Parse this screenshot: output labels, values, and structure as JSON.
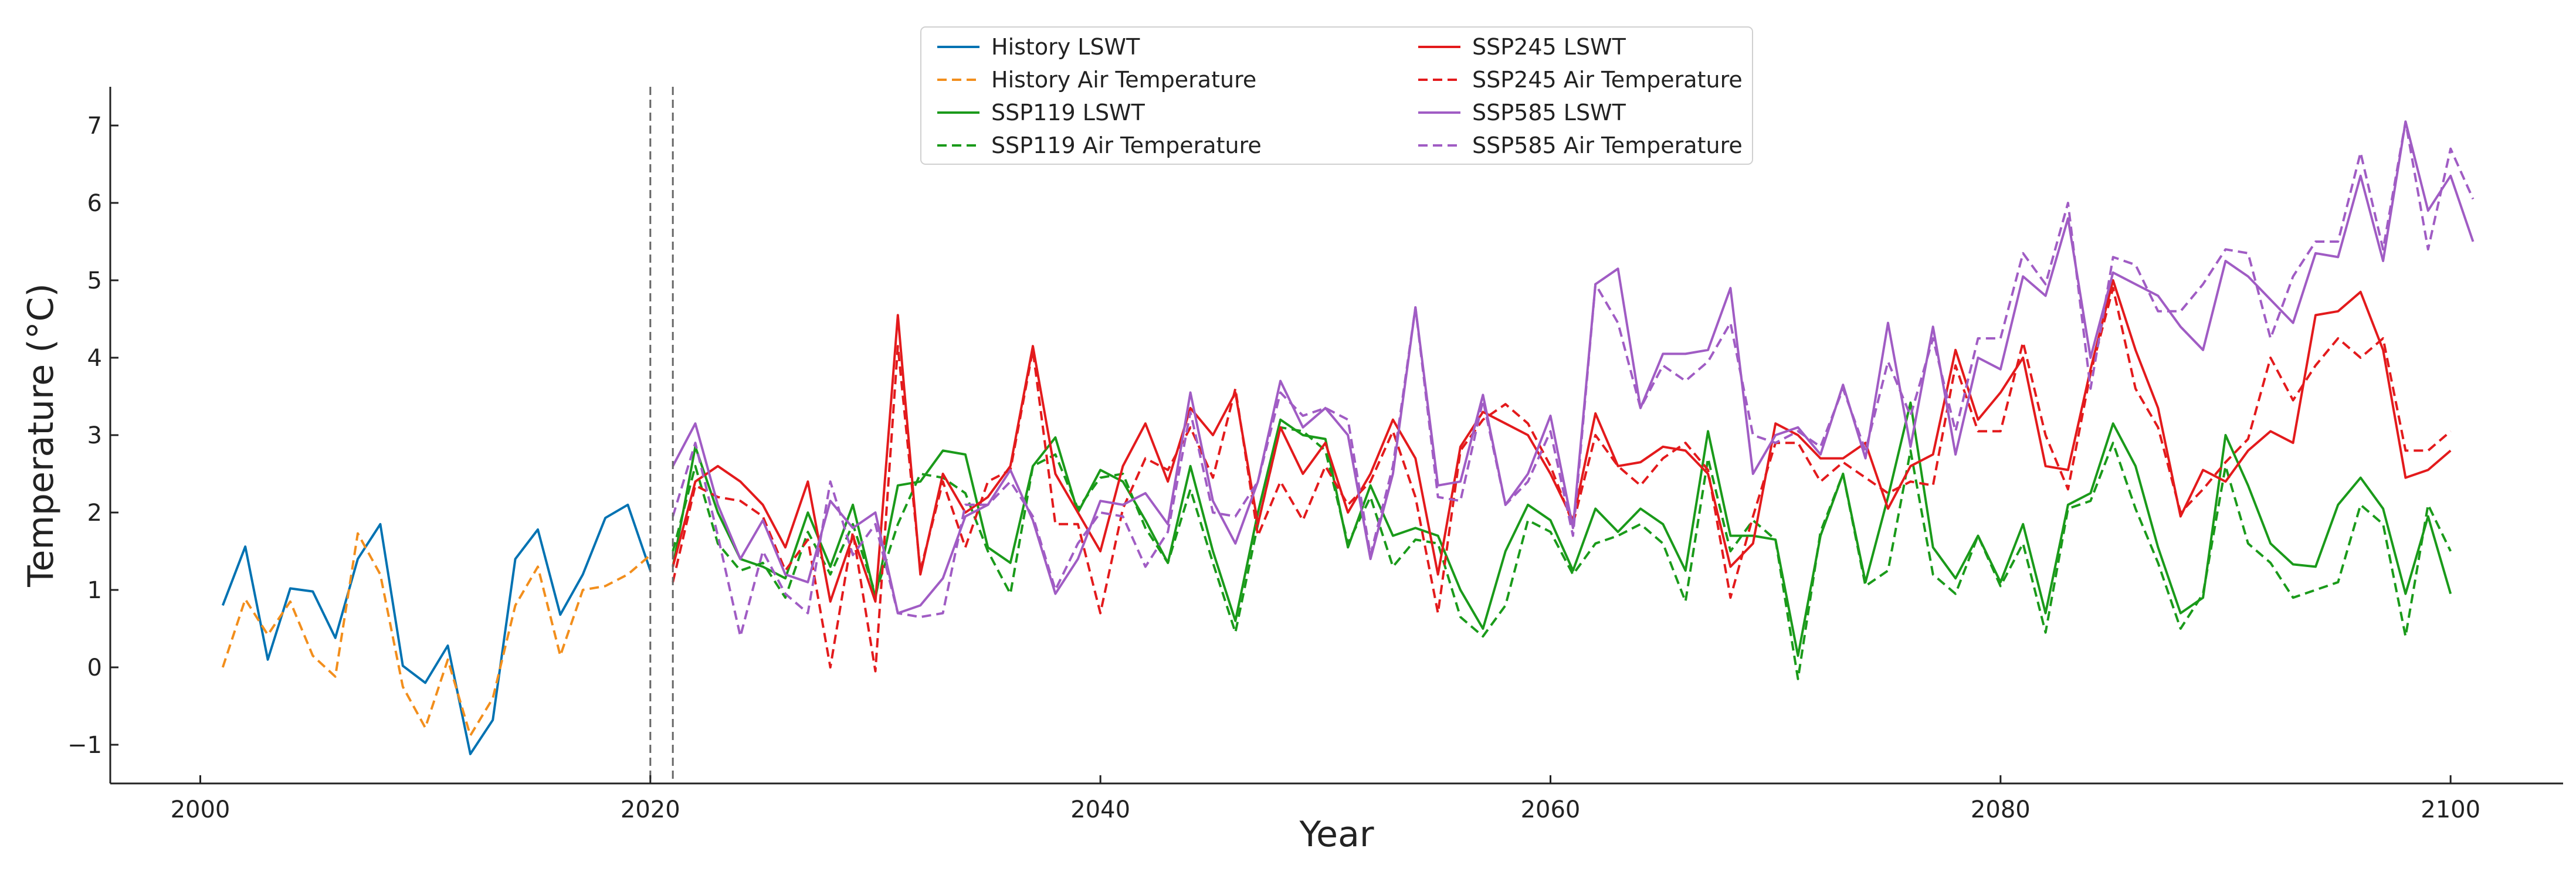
{
  "chart_data": {
    "type": "line",
    "title": "",
    "xlabel": "Year",
    "ylabel": "Temperature (°C)",
    "xlim": [
      1996,
      2105
    ],
    "ylim": [
      -1.5,
      7.5
    ],
    "xticks": [
      2000,
      2020,
      2040,
      2060,
      2080,
      2100
    ],
    "yticks": [
      -1,
      0,
      1,
      2,
      3,
      4,
      5,
      6,
      7
    ],
    "ytick_labels": [
      "−1",
      "0",
      "1",
      "2",
      "3",
      "4",
      "5",
      "6",
      "7"
    ],
    "vlines": [
      2020,
      2021
    ],
    "grid": false,
    "legend_position": "upper center",
    "colors": {
      "history": "#0072b2",
      "history_air": "#f28e1c",
      "ssp119": "#1a9a1a",
      "ssp245": "#e31a1c",
      "ssp585": "#a05cc4",
      "vline": "#666666",
      "axis": "#222222"
    },
    "series": [
      {
        "name": "History LSWT",
        "key": "history",
        "dash": false,
        "x0": 2001,
        "values": [
          0.8,
          1.56,
          0.1,
          1.02,
          0.98,
          0.38,
          1.4,
          1.85,
          0.02,
          -0.2,
          0.28,
          -1.12,
          -0.68,
          1.4,
          1.78,
          0.68,
          1.2,
          1.93,
          2.1,
          1.25
        ]
      },
      {
        "name": "History Air Temperature",
        "key": "history_air",
        "dash": true,
        "x0": 2001,
        "values": [
          0.0,
          0.88,
          0.42,
          0.85,
          0.15,
          -0.12,
          1.73,
          1.2,
          -0.25,
          -0.78,
          0.1,
          -0.88,
          -0.4,
          0.8,
          1.3,
          0.15,
          1.0,
          1.05,
          1.2,
          1.45
        ]
      },
      {
        "name": "SSP119 LSWT",
        "key": "ssp119",
        "dash": false,
        "x0": 2021,
        "values": [
          1.3,
          2.85,
          2.0,
          1.4,
          1.3,
          1.15,
          2.0,
          1.3,
          2.1,
          0.9,
          2.35,
          2.4,
          2.8,
          2.75,
          1.55,
          1.35,
          2.6,
          2.97,
          2.0,
          2.55,
          2.4,
          1.9,
          1.35,
          2.6,
          1.5,
          0.6,
          2.0,
          3.2,
          3.0,
          2.95,
          1.55,
          2.35,
          1.7,
          1.8,
          1.7,
          1.0,
          0.5,
          1.5,
          2.1,
          1.9,
          1.25,
          2.05,
          1.75,
          2.05,
          1.85,
          1.25,
          3.05,
          1.7,
          1.7,
          1.65,
          0.15,
          1.7,
          2.5,
          1.1,
          2.2,
          3.42,
          1.55,
          1.15,
          1.7,
          1.1,
          1.85,
          0.7,
          2.1,
          2.25,
          3.15,
          2.6,
          1.55,
          0.7,
          0.9,
          3.0,
          2.35,
          1.6,
          1.33,
          1.3,
          2.1,
          2.45,
          2.05,
          0.95,
          1.95,
          0.95
        ]
      },
      {
        "name": "SSP119 Air Temperature",
        "key": "ssp119_air",
        "dash": true,
        "x0": 2021,
        "values": [
          1.5,
          2.6,
          1.6,
          1.25,
          1.35,
          0.9,
          1.75,
          1.2,
          1.85,
          0.95,
          1.85,
          2.5,
          2.45,
          2.25,
          1.5,
          0.95,
          2.6,
          2.75,
          2.05,
          2.45,
          2.5,
          1.8,
          1.35,
          2.3,
          1.35,
          0.45,
          1.85,
          3.1,
          3.05,
          2.8,
          1.6,
          2.2,
          1.3,
          1.65,
          1.6,
          0.65,
          0.4,
          0.8,
          1.9,
          1.75,
          1.2,
          1.6,
          1.7,
          1.85,
          1.6,
          0.85,
          2.7,
          1.5,
          1.9,
          1.65,
          -0.15,
          1.75,
          2.5,
          1.05,
          1.25,
          2.8,
          1.2,
          0.95,
          1.7,
          1.05,
          1.6,
          0.45,
          2.05,
          2.15,
          2.9,
          2.05,
          1.35,
          0.5,
          0.95,
          2.6,
          1.6,
          1.35,
          0.9,
          1.0,
          1.1,
          2.1,
          1.85,
          0.4,
          2.1,
          1.5
        ]
      },
      {
        "name": "SSP245 LSWT",
        "key": "ssp245",
        "dash": false,
        "x0": 2021,
        "values": [
          1.3,
          2.4,
          2.6,
          2.4,
          2.1,
          1.55,
          2.4,
          0.85,
          1.7,
          0.85,
          4.55,
          1.2,
          2.5,
          2.0,
          2.2,
          2.6,
          4.15,
          2.5,
          2.0,
          1.5,
          2.6,
          3.15,
          2.4,
          3.35,
          3.0,
          3.55,
          1.85,
          3.1,
          2.5,
          2.9,
          2.0,
          2.5,
          3.2,
          2.7,
          1.2,
          2.85,
          3.3,
          3.15,
          3.0,
          2.5,
          1.9,
          3.28,
          2.6,
          2.65,
          2.85,
          2.8,
          2.5,
          1.3,
          1.6,
          3.15,
          3.0,
          2.7,
          2.7,
          2.9,
          2.05,
          2.6,
          2.75,
          4.1,
          3.2,
          3.55,
          4.0,
          2.6,
          2.55,
          3.85,
          5.0,
          4.1,
          3.35,
          1.95,
          2.55,
          2.4,
          2.8,
          3.05,
          2.9,
          4.55,
          4.6,
          4.85,
          4.1,
          2.45,
          2.55,
          2.8
        ]
      },
      {
        "name": "SSP245 Air Temperature",
        "key": "ssp245_air",
        "dash": true,
        "x0": 2021,
        "values": [
          1.1,
          2.35,
          2.2,
          2.15,
          1.95,
          1.25,
          1.65,
          0.0,
          1.75,
          -0.05,
          4.15,
          1.25,
          2.4,
          1.55,
          2.4,
          2.55,
          4.1,
          1.85,
          1.85,
          0.7,
          2.05,
          2.7,
          2.55,
          3.1,
          2.45,
          3.6,
          1.7,
          2.4,
          1.9,
          2.6,
          2.1,
          2.4,
          3.05,
          2.2,
          0.7,
          2.8,
          3.2,
          3.4,
          3.15,
          2.6,
          1.85,
          3.0,
          2.6,
          2.35,
          2.7,
          2.9,
          2.55,
          0.9,
          1.95,
          2.9,
          2.9,
          2.4,
          2.65,
          2.45,
          2.25,
          2.4,
          2.35,
          3.9,
          3.05,
          3.05,
          4.2,
          3.0,
          2.3,
          3.8,
          4.9,
          3.6,
          3.1,
          2.0,
          2.3,
          2.65,
          2.95,
          4.0,
          3.45,
          3.9,
          4.25,
          4.0,
          4.25,
          2.8,
          2.8,
          3.05
        ]
      },
      {
        "name": "SSP585 LSWT",
        "key": "ssp585",
        "dash": false,
        "x0": 2021,
        "values": [
          2.6,
          3.15,
          2.1,
          1.4,
          1.9,
          1.2,
          1.1,
          2.15,
          1.8,
          2.0,
          0.7,
          0.8,
          1.15,
          1.95,
          2.1,
          2.55,
          1.9,
          0.95,
          1.4,
          2.15,
          2.1,
          2.25,
          1.85,
          3.55,
          2.15,
          1.6,
          2.4,
          3.7,
          3.1,
          3.35,
          3.0,
          1.4,
          2.5,
          4.65,
          2.35,
          2.4,
          3.52,
          2.1,
          2.5,
          3.25,
          1.8,
          4.95,
          5.15,
          3.35,
          4.05,
          4.05,
          4.1,
          4.9,
          2.5,
          3.0,
          3.1,
          2.75,
          3.65,
          2.7,
          4.45,
          2.85,
          4.4,
          2.75,
          4.0,
          3.85,
          5.05,
          4.8,
          5.8,
          4.0,
          5.1,
          4.95,
          4.8,
          4.4,
          4.1,
          5.25,
          5.05,
          4.75,
          4.45,
          5.35,
          5.3,
          6.35,
          5.25,
          7.05,
          5.9,
          6.35,
          5.5
        ]
      },
      {
        "name": "SSP585 Air Temperature",
        "key": "ssp585_air",
        "dash": true,
        "x0": 2021,
        "values": [
          1.95,
          2.9,
          1.7,
          0.4,
          1.5,
          0.95,
          0.7,
          2.4,
          1.45,
          1.85,
          0.7,
          0.65,
          0.7,
          2.1,
          2.1,
          2.4,
          1.95,
          1.0,
          1.6,
          2.0,
          1.95,
          1.3,
          1.75,
          3.3,
          2.0,
          1.95,
          2.4,
          3.55,
          3.25,
          3.35,
          3.2,
          1.45,
          2.6,
          4.65,
          2.2,
          2.15,
          3.45,
          2.1,
          2.4,
          3.05,
          1.7,
          4.95,
          4.45,
          3.35,
          3.9,
          3.7,
          3.95,
          4.45,
          3.0,
          2.9,
          3.05,
          2.85,
          3.6,
          2.8,
          3.95,
          3.25,
          4.25,
          3.05,
          4.25,
          4.25,
          5.35,
          4.95,
          6.0,
          3.6,
          5.3,
          5.2,
          4.6,
          4.6,
          4.95,
          5.4,
          5.35,
          4.25,
          5.05,
          5.5,
          5.5,
          6.65,
          5.4,
          7.05,
          5.4,
          6.7,
          6.05
        ]
      }
    ],
    "legend": [
      {
        "label": "History LSWT",
        "key": "history",
        "dash": false
      },
      {
        "label": "History Air Temperature",
        "key": "history_air",
        "dash": true
      },
      {
        "label": "SSP119 LSWT",
        "key": "ssp119",
        "dash": false
      },
      {
        "label": "SSP119 Air Temperature",
        "key": "ssp119",
        "dash": true
      },
      {
        "label": "SSP245 LSWT",
        "key": "ssp245",
        "dash": false
      },
      {
        "label": "SSP245 Air Temperature",
        "key": "ssp245",
        "dash": true
      },
      {
        "label": "SSP585 LSWT",
        "key": "ssp585",
        "dash": false
      },
      {
        "label": "SSP585 Air Temperature",
        "key": "ssp585",
        "dash": true
      }
    ]
  }
}
